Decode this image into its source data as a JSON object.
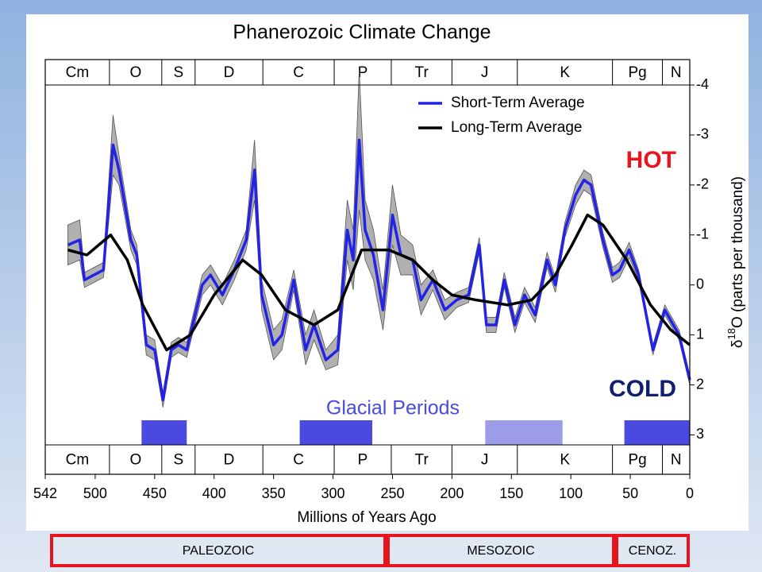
{
  "chart_data": {
    "type": "line",
    "title": "Phanerozoic Climate Change",
    "xlabel": "Millions of Years Ago",
    "ylabel_parts": [
      "δ",
      "18",
      "O (parts per thousand)"
    ],
    "xlim": [
      542,
      0
    ],
    "xticks": [
      542,
      500,
      450,
      400,
      350,
      300,
      250,
      200,
      150,
      100,
      50,
      0
    ],
    "ylim": [
      -4,
      3.2
    ],
    "yticks": [
      -4,
      -3,
      -2,
      -1,
      0,
      1,
      2,
      3
    ],
    "y_inverted": true,
    "legend": "top-right",
    "hot_label": "HOT",
    "cold_label": "COLD",
    "glacial_label": "Glacial Periods",
    "band_color": "#b0b0b0",
    "periods": [
      {
        "name": "Cm",
        "start": 542,
        "end": 488
      },
      {
        "name": "O",
        "start": 488,
        "end": 444
      },
      {
        "name": "S",
        "start": 444,
        "end": 416
      },
      {
        "name": "D",
        "start": 416,
        "end": 359
      },
      {
        "name": "C",
        "start": 359,
        "end": 299
      },
      {
        "name": "P",
        "start": 299,
        "end": 251
      },
      {
        "name": "Tr",
        "start": 251,
        "end": 200
      },
      {
        "name": "J",
        "start": 200,
        "end": 145
      },
      {
        "name": "K",
        "start": 145,
        "end": 65
      },
      {
        "name": "Pg",
        "start": 65,
        "end": 23
      },
      {
        "name": "N",
        "start": 23,
        "end": 0
      }
    ],
    "glacial_periods": [
      {
        "start": 461,
        "end": 423,
        "color": "#4a4ae0"
      },
      {
        "start": 328,
        "end": 267,
        "color": "#4a4ae0"
      },
      {
        "start": 172,
        "end": 107,
        "color": "#9c9ce8"
      },
      {
        "start": 55,
        "end": 0,
        "color": "#4a4ae0"
      }
    ],
    "series": [
      {
        "name": "Short-Term Average",
        "color": "#2323e6",
        "x": [
          523,
          513,
          509,
          493,
          485,
          480,
          470,
          465,
          457,
          450,
          443,
          436,
          430,
          423,
          410,
          403,
          393,
          383,
          373,
          366,
          360,
          350,
          343,
          333,
          323,
          316,
          306,
          296,
          288,
          283,
          278,
          273,
          266,
          258,
          250,
          243,
          233,
          226,
          216,
          206,
          196,
          186,
          177,
          171,
          163,
          156,
          147,
          139,
          130,
          120,
          113,
          105,
          96,
          89,
          83,
          73,
          65,
          59,
          51,
          43,
          31,
          21,
          9,
          0
        ],
        "values": [
          -0.8,
          -0.9,
          -0.1,
          -0.3,
          -2.8,
          -2.3,
          -0.9,
          -0.6,
          1.2,
          1.3,
          2.3,
          1.3,
          1.2,
          1.3,
          0.0,
          -0.2,
          0.2,
          -0.3,
          -0.9,
          -2.3,
          0.2,
          1.2,
          1.0,
          -0.1,
          1.3,
          0.8,
          1.5,
          1.3,
          -1.1,
          -0.5,
          -2.9,
          -1.1,
          -0.6,
          0.5,
          -1.4,
          -0.6,
          -0.5,
          0.3,
          -0.1,
          0.5,
          0.3,
          0.2,
          -0.8,
          0.8,
          0.8,
          -0.1,
          0.8,
          0.2,
          0.6,
          -0.5,
          0.0,
          -1.1,
          -1.8,
          -2.1,
          -2.0,
          -0.9,
          -0.2,
          -0.3,
          -0.7,
          -0.2,
          1.3,
          0.5,
          1.0,
          1.9
        ],
        "error": [
          0.4,
          0.4,
          0.15,
          0.15,
          0.6,
          0.3,
          0.2,
          0.2,
          0.2,
          0.2,
          0.15,
          0.15,
          0.15,
          0.15,
          0.2,
          0.2,
          0.2,
          0.2,
          0.2,
          0.6,
          0.3,
          0.3,
          0.3,
          0.2,
          0.3,
          0.3,
          0.2,
          0.3,
          0.6,
          0.6,
          1.4,
          0.6,
          0.5,
          0.4,
          0.6,
          0.4,
          0.3,
          0.3,
          0.2,
          0.2,
          0.15,
          0.15,
          0.15,
          0.15,
          0.15,
          0.15,
          0.15,
          0.15,
          0.15,
          0.15,
          0.15,
          0.15,
          0.2,
          0.2,
          0.2,
          0.15,
          0.15,
          0.15,
          0.15,
          0.1,
          0.1,
          0.1,
          0.1,
          0.1
        ]
      },
      {
        "name": "Long-Term Average",
        "color": "#000000",
        "x": [
          523,
          507,
          487,
          473,
          460,
          440,
          420,
          400,
          376,
          360,
          340,
          316,
          296,
          276,
          253,
          233,
          216,
          200,
          180,
          153,
          133,
          113,
          99,
          86,
          73,
          53,
          33,
          16,
          0
        ],
        "values": [
          -0.7,
          -0.6,
          -1.0,
          -0.5,
          0.4,
          1.3,
          1.0,
          0.2,
          -0.5,
          -0.2,
          0.5,
          0.8,
          0.5,
          -0.7,
          -0.7,
          -0.5,
          -0.1,
          0.2,
          0.3,
          0.4,
          0.3,
          -0.2,
          -0.8,
          -1.4,
          -1.2,
          -0.5,
          0.4,
          0.9,
          1.2
        ]
      }
    ],
    "eras": [
      "PALEOZOIC",
      "MESOZOIC",
      "CENOZ."
    ]
  }
}
